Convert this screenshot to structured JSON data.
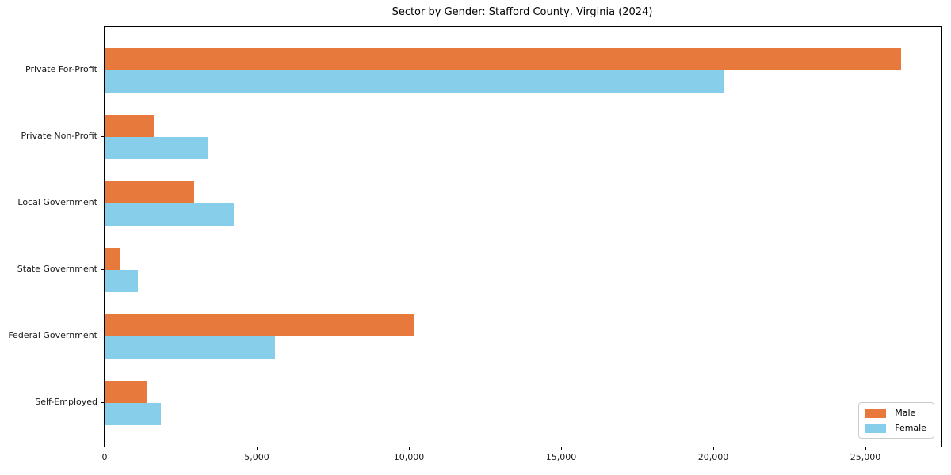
{
  "title": "Sector by Gender: Stafford County, Virginia (2024)",
  "chart_data": {
    "type": "bar",
    "orientation": "horizontal",
    "title": "Sector by Gender: Stafford County, Virginia (2024)",
    "xlabel": "",
    "ylabel": "",
    "grid": false,
    "categories": [
      "Private For-Profit",
      "Private Non-Profit",
      "Local Government",
      "State Government",
      "Federal Government",
      "Self-Employed"
    ],
    "series": [
      {
        "name": "Male",
        "color": "#e8793c",
        "values": [
          26160,
          1610,
          2950,
          490,
          10150,
          1410
        ]
      },
      {
        "name": "Female",
        "color": "#87ceeb",
        "values": [
          20360,
          3420,
          4250,
          1090,
          5610,
          1860
        ]
      }
    ],
    "xlim": [
      0,
      27500
    ],
    "xticks": [
      0,
      5000,
      10000,
      15000,
      20000,
      25000
    ],
    "xtick_labels": [
      "0",
      "5,000",
      "10,000",
      "15,000",
      "20,000",
      "25,000"
    ],
    "legend": {
      "position": "lower right",
      "entries": [
        "Male",
        "Female"
      ]
    }
  }
}
